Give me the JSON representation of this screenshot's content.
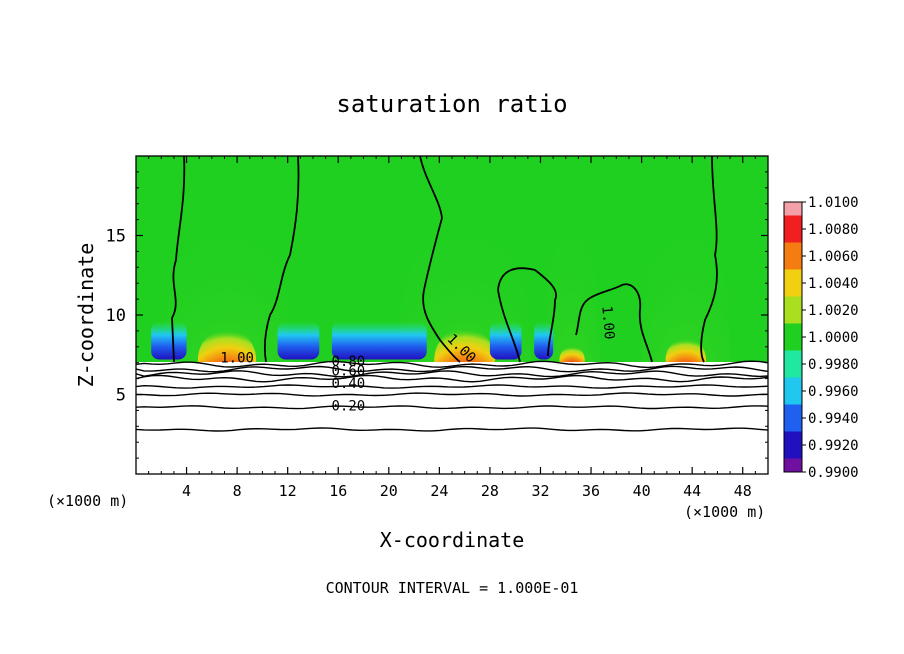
{
  "chart_data": {
    "type": "heatmap",
    "title": "saturation ratio",
    "xlabel": "X-coordinate",
    "ylabel": "Z-coordinate",
    "x_unit_left": "(×1000 m)",
    "x_unit_right": "(×1000 m)",
    "footer": "CONTOUR INTERVAL = 1.000E-01",
    "xlim": [
      0,
      50
    ],
    "ylim": [
      0,
      20
    ],
    "x_ticks": [
      4,
      8,
      12,
      16,
      20,
      24,
      28,
      32,
      36,
      40,
      44,
      48
    ],
    "y_ticks": [
      5,
      10,
      15
    ],
    "grid": false,
    "legend_placement": "right",
    "colorbar": {
      "labels": [
        "1.0100",
        "1.0080",
        "1.0060",
        "1.0040",
        "1.0020",
        "1.0000",
        "0.9980",
        "0.9960",
        "0.9940",
        "0.9920",
        "0.9900"
      ],
      "colors": [
        "#f4a0a8",
        "#f02020",
        "#f57c10",
        "#f0d010",
        "#a8e020",
        "#20d020",
        "#20e8a0",
        "#20c8f0",
        "#2060f0",
        "#2010c0",
        "#7010a0"
      ]
    },
    "contour_labels": [
      {
        "text": "1.00",
        "x": 8.0,
        "y": 7.0
      },
      {
        "text": "1.00",
        "x": 25.5,
        "y": 7.7,
        "rotate": 45
      },
      {
        "text": "1.00",
        "x": 37.0,
        "y": 9.5,
        "rotate": 85
      },
      {
        "text": "0.80",
        "x": 16.8,
        "y": 6.8
      },
      {
        "text": "0.60",
        "x": 16.8,
        "y": 6.2
      },
      {
        "text": "0.40",
        "x": 16.8,
        "y": 5.4
      },
      {
        "text": "0.20",
        "x": 16.8,
        "y": 4.0
      }
    ],
    "warm_cores": [
      {
        "x": 7.2,
        "width": 4.6
      },
      {
        "x": 26.0,
        "width": 4.8
      },
      {
        "x": 34.5,
        "width": 2.0
      },
      {
        "x": 43.5,
        "width": 3.2
      }
    ],
    "cold_bands": [
      {
        "x0": 1.2,
        "x1": 4.0
      },
      {
        "x0": 11.2,
        "x1": 14.5
      },
      {
        "x0": 15.5,
        "x1": 23.0
      },
      {
        "x0": 28.0,
        "x1": 30.5
      },
      {
        "x0": 31.5,
        "x1": 33.0
      }
    ],
    "low_contour_levels": [
      {
        "y": 6.9
      },
      {
        "y": 6.6
      },
      {
        "y": 6.3
      },
      {
        "y": 6.0
      },
      {
        "y": 5.5
      },
      {
        "y": 5.0
      },
      {
        "y": 4.2
      },
      {
        "y": 2.8
      }
    ]
  }
}
